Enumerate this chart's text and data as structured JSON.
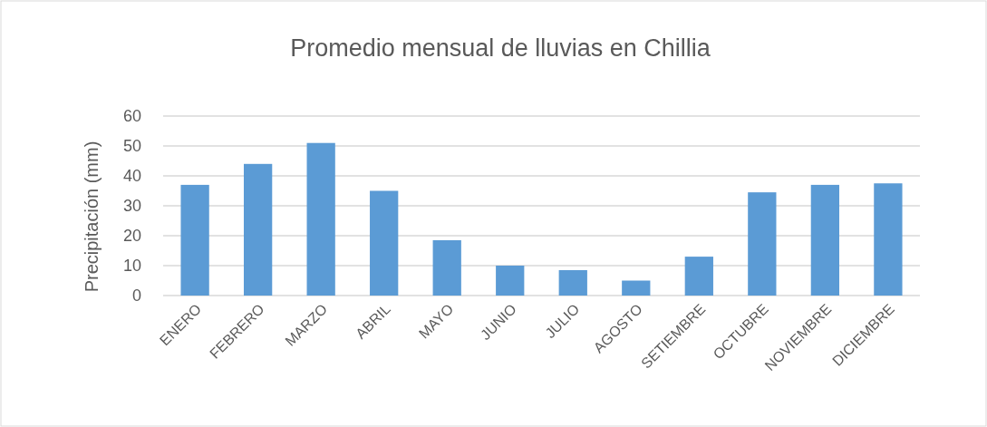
{
  "chart_data": {
    "type": "bar",
    "title": "Promedio mensual de lluvias en Chillia",
    "ylabel": "Precipitación (mm)",
    "categories": [
      "ENERO",
      "FEBRERO",
      "MARZO",
      "ABRIL",
      "MAYO",
      "JUNIO",
      "JULIO",
      "AGOSTO",
      "SETIEMBRE",
      "OCTUBRE",
      "NOVIEMBRE",
      "DICIEMBRE"
    ],
    "values": [
      37,
      44,
      51,
      35,
      18.5,
      10,
      8.5,
      5,
      13,
      34.5,
      37,
      37.5
    ],
    "color": "#5b9bd5",
    "ylim": [
      0,
      60
    ],
    "yticks": [
      0,
      10,
      20,
      30,
      40,
      50,
      60
    ],
    "grid": "y"
  }
}
